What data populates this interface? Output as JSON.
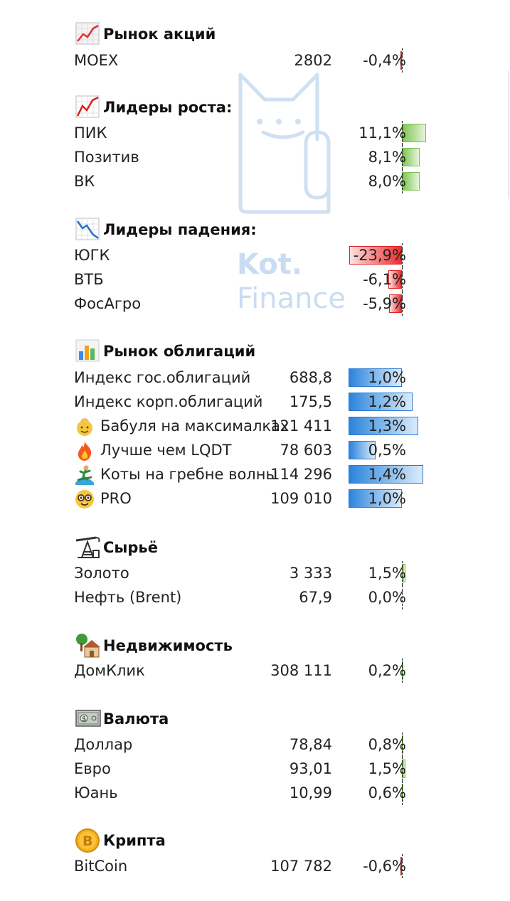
{
  "watermark": {
    "line1": "Kot.",
    "line2": "Finance"
  },
  "sections": {
    "stocks": {
      "title": "Рынок акций",
      "icon": "chart-up-icon",
      "rows": [
        {
          "name": "MOEX",
          "value": "2802",
          "change": "-0,4%",
          "change_pct": -0.4
        }
      ]
    },
    "gainers": {
      "title": "Лидеры роста:",
      "icon": "chart-up-icon",
      "rows": [
        {
          "name": "ПИК",
          "change": "11,1%",
          "change_pct": 11.1
        },
        {
          "name": "Позитив",
          "change": "8,1%",
          "change_pct": 8.1
        },
        {
          "name": "ВК",
          "change": "8,0%",
          "change_pct": 8.0
        }
      ]
    },
    "losers": {
      "title": "Лидеры падения:",
      "icon": "chart-down-icon",
      "rows": [
        {
          "name": "ЮГК",
          "change": "-23,9%",
          "change_pct": -23.9
        },
        {
          "name": "ВТБ",
          "change": "-6,1%",
          "change_pct": -6.1
        },
        {
          "name": "ФосАгро",
          "change": "-5,9%",
          "change_pct": -5.9
        }
      ]
    },
    "bonds": {
      "title": "Рынок облигаций",
      "icon": "bar-chart-icon",
      "rows": [
        {
          "name": "Индекс гос.облигаций",
          "value": "688,8",
          "change": "1,0%",
          "change_pct": 1.0
        },
        {
          "name": "Индекс корп.облигаций",
          "value": "175,5",
          "change": "1,2%",
          "change_pct": 1.2
        },
        {
          "name": "Бабуля на максималках",
          "value": "121 411",
          "change": "1,3%",
          "change_pct": 1.3,
          "emoji": "grandma-emoji-icon"
        },
        {
          "name": "Лучше чем LQDT",
          "value": "78 603",
          "change": "0,5%",
          "change_pct": 0.5,
          "emoji": "fire-emoji-icon"
        },
        {
          "name": "Коты на гребне волны",
          "value": "114 296",
          "change": "1,4%",
          "change_pct": 1.4,
          "emoji": "surfer-emoji-icon"
        },
        {
          "name": "PRO",
          "value": "109 010",
          "change": "1,0%",
          "change_pct": 1.0,
          "emoji": "nerd-face-emoji-icon"
        }
      ]
    },
    "commodities": {
      "title": "Сырьё",
      "icon": "oil-pump-icon",
      "rows": [
        {
          "name": "Золото",
          "value": "3 333",
          "change": "1,5%",
          "change_pct": 1.5
        },
        {
          "name": "Нефть (Brent)",
          "value": "67,9",
          "change": "0,0%",
          "change_pct": 0.0
        }
      ]
    },
    "realty": {
      "title": "Недвижимость",
      "icon": "house-icon",
      "rows": [
        {
          "name": "ДомКлик",
          "value": "308 111",
          "change": "0,2%",
          "change_pct": 0.2
        }
      ]
    },
    "currency": {
      "title": "Валюта",
      "icon": "banknote-icon",
      "rows": [
        {
          "name": "Доллар",
          "value": "78,84",
          "change": "0,8%",
          "change_pct": 0.8
        },
        {
          "name": "Евро",
          "value": "93,01",
          "change": "1,5%",
          "change_pct": 1.5
        },
        {
          "name": "Юань",
          "value": "10,99",
          "change": "0,6%",
          "change_pct": 0.6
        }
      ]
    },
    "crypto": {
      "title": "Крипта",
      "icon": "bitcoin-icon",
      "rows": [
        {
          "name": "BitCoin",
          "value": "107 782",
          "change": "-0,6%",
          "change_pct": -0.6
        }
      ]
    }
  },
  "colors": {
    "positive": "#7ec452",
    "negative": "#ec2d2d",
    "bonds": "#2a84dc",
    "watermark": "#c9dcf2"
  }
}
